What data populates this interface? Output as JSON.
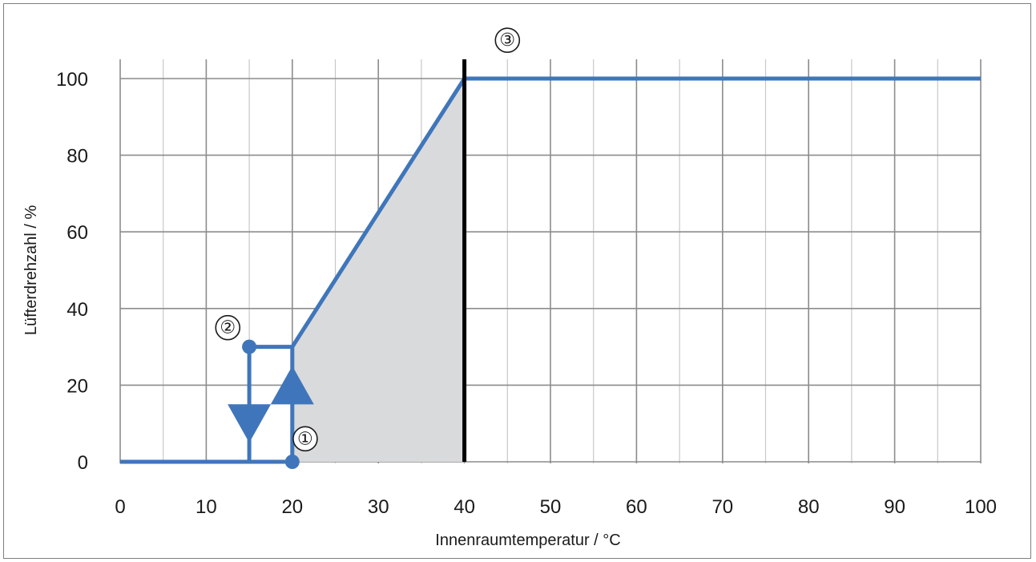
{
  "chart_data": {
    "type": "line",
    "title": "",
    "xlabel": "Innenraumtemperatur / °C",
    "ylabel": "Lüfterdrehzahl / %",
    "xlim": [
      0,
      100
    ],
    "ylim": [
      0,
      100
    ],
    "x_ticks": [
      0,
      10,
      20,
      30,
      40,
      50,
      60,
      70,
      80,
      90,
      100
    ],
    "y_ticks": [
      0,
      20,
      40,
      60,
      80,
      100
    ],
    "grid": true,
    "series": [
      {
        "points": [
          {
            "x": 0,
            "y": 0
          },
          {
            "x": 20,
            "y": 0
          },
          {
            "x": 20,
            "y": 30
          },
          {
            "x": 40,
            "y": 100
          },
          {
            "x": 100,
            "y": 100
          }
        ]
      }
    ],
    "hysteresis": {
      "points": [
        {
          "x": 20,
          "y": 30
        },
        {
          "x": 15,
          "y": 30
        },
        {
          "x": 15,
          "y": 0
        }
      ]
    },
    "shaded_region": {
      "points": [
        {
          "x": 20,
          "y": 0
        },
        {
          "x": 20,
          "y": 30
        },
        {
          "x": 40,
          "y": 100
        },
        {
          "x": 40,
          "y": 0
        }
      ]
    },
    "limit_line": {
      "x": 40,
      "y_from": 0,
      "y_to": 100
    },
    "annotations": [
      {
        "label": "①",
        "x": 21.5,
        "y": 6
      },
      {
        "label": "②",
        "x": 12.5,
        "y": 35
      },
      {
        "label": "③",
        "x": 45,
        "y": 110
      }
    ],
    "arrows": [
      {
        "x": 20,
        "y": 20,
        "direction": "up"
      },
      {
        "x": 15,
        "y": 10,
        "direction": "down"
      }
    ],
    "dots": [
      {
        "x": 20,
        "y": 0
      },
      {
        "x": 15,
        "y": 30
      }
    ],
    "colors": {
      "line": "#3f76bb",
      "limit": "#000000",
      "shade": "#d9dadb",
      "grid_major": "#8c8c8c",
      "grid_minor": "#c8c8c8"
    }
  }
}
